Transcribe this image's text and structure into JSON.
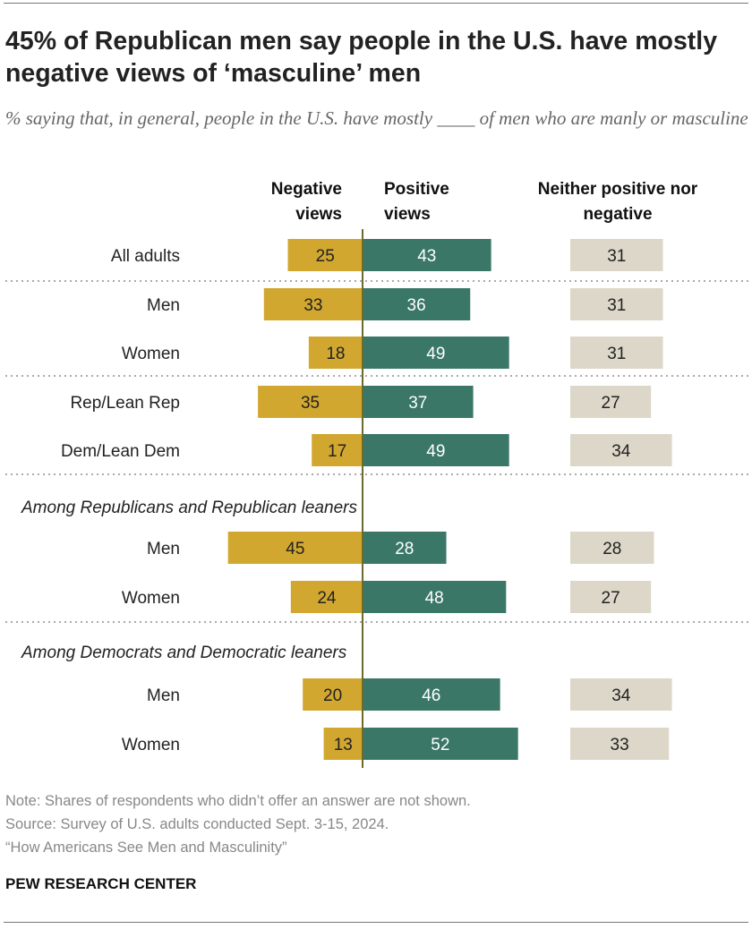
{
  "title": "45% of Republican men say people in the U.S. have mostly negative views of ‘masculine’ men",
  "subtitle": "% saying that, in general, people in the U.S. have mostly ____ of men who are manly or masculine",
  "chart_data": {
    "type": "bar",
    "orientation": "horizontal diverging",
    "column_headers": [
      "Negative views",
      "Positive views",
      "Neither positive nor negative"
    ],
    "colors": {
      "negative": "#D1A730",
      "positive": "#3A7767",
      "neither": "#DCD7C8",
      "axis": "#6B6B2E"
    },
    "rows": [
      {
        "label": "All adults",
        "group": "",
        "negative": 25,
        "positive": 43,
        "neither": 31
      },
      {
        "label": "Men",
        "group": "",
        "negative": 33,
        "positive": 36,
        "neither": 31
      },
      {
        "label": "Women",
        "group": "",
        "negative": 18,
        "positive": 49,
        "neither": 31
      },
      {
        "label": "Rep/Lean Rep",
        "group": "",
        "negative": 35,
        "positive": 37,
        "neither": 27
      },
      {
        "label": "Dem/Lean Dem",
        "group": "",
        "negative": 17,
        "positive": 49,
        "neither": 34
      },
      {
        "label": "Men",
        "group": "Among Republicans and Republican leaners",
        "negative": 45,
        "positive": 28,
        "neither": 28
      },
      {
        "label": "Women",
        "group": "Among Republicans and Republican leaners",
        "negative": 24,
        "positive": 48,
        "neither": 27
      },
      {
        "label": "Men",
        "group": "Among Democrats and Democratic leaners",
        "negative": 20,
        "positive": 46,
        "neither": 34
      },
      {
        "label": "Women",
        "group": "Among Democrats and Democratic leaners",
        "negative": 13,
        "positive": 52,
        "neither": 33
      }
    ],
    "group_labels": [
      "Among Republicans and Republican leaners",
      "Among Democrats and Democratic leaners"
    ]
  },
  "notes": {
    "note": "Note: Shares of respondents who didn’t offer an answer are not shown.",
    "source": "Source: Survey of U.S. adults conducted Sept. 3-15, 2024.",
    "report": "“How Americans See Men and Masculinity”"
  },
  "brand": "PEW RESEARCH CENTER"
}
